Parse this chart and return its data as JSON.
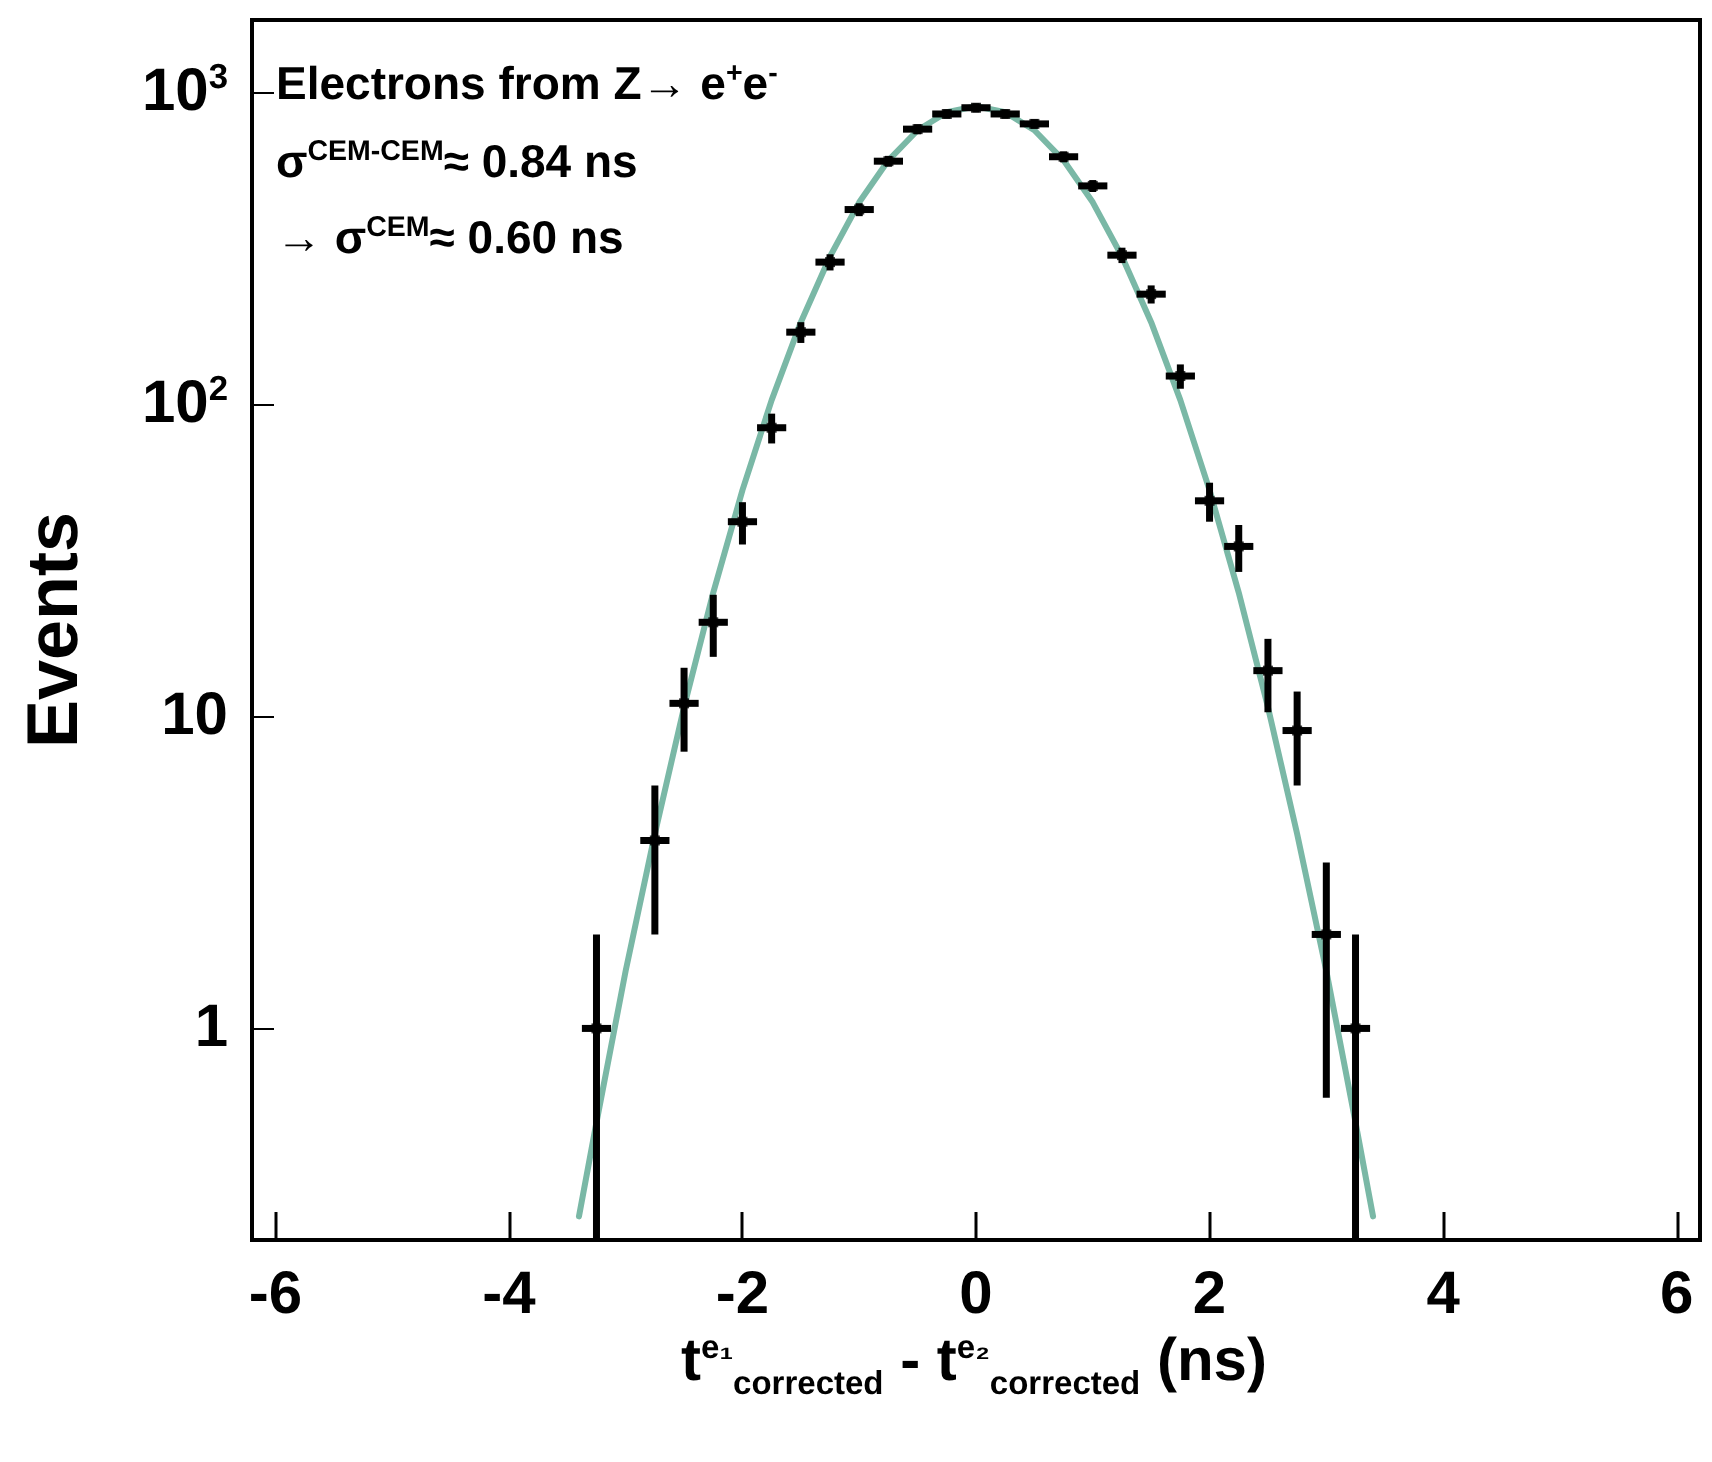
{
  "chart_data": {
    "type": "scatter",
    "xlabel": "t$^{e₁}$$_{corrected}$ - t$^{e₂}$$_{corrected}$ (ns)",
    "ylabel": "Events",
    "annotations": [
      "Electrons from Z→ e$^{+}$e$^{-}$",
      "σ$^{CEM-CEM}$≈ 0.84 ns",
      "→ σ$^{CEM}$≈ 0.60 ns"
    ],
    "xlim": [
      -6.2,
      6.2
    ],
    "xticks": [
      -6,
      -4,
      -2,
      0,
      2,
      4,
      6
    ],
    "ylim": [
      0.21,
      1700
    ],
    "yticks": [
      1,
      10,
      {
        "value": 100,
        "label": "10$^{2}$"
      },
      {
        "value": 1000,
        "label": "10$^{3}$"
      }
    ],
    "log": "y",
    "series": [
      {
        "color": "#000000",
        "x": [
          -3.25,
          -2.75,
          -2.5,
          -2.25,
          -2,
          -1.75,
          -1.5,
          -1.25,
          -1,
          -0.75,
          -0.5,
          -0.25,
          0,
          0.25,
          0.5,
          0.75,
          1,
          1.25,
          1.5,
          1.75,
          2,
          2.25,
          2.5,
          2.75,
          3,
          3.25
        ],
        "values": [
          1,
          4,
          11,
          20,
          42,
          84,
          170,
          285,
          420,
          600,
          760,
          850,
          890,
          850,
          790,
          620,
          500,
          300,
          225,
          123,
          49,
          35,
          14,
          9,
          2,
          1
        ],
        "errors": [
          [
            0.21,
            2
          ],
          2,
          3.3,
          4.5,
          6.5,
          9.2,
          13,
          17,
          20,
          24,
          28,
          29,
          30,
          29,
          28,
          25,
          22,
          17,
          15,
          11,
          7,
          6,
          3.7,
          3,
          1.4,
          [
            0.21,
            2
          ]
        ],
        "xerrors": [
          0.125,
          0.125,
          0.125,
          0.125,
          0.125,
          0.125,
          0.125,
          0.125,
          0.125,
          0.125,
          0.125,
          0.125,
          0.125,
          0.125,
          0.125,
          0.125,
          0.125,
          0.125,
          0.125,
          0.125,
          0.125,
          0.125,
          0.125,
          0.125,
          0.125,
          0.125
        ]
      },
      {
        "type": "line",
        "color": "#7ab8a6",
        "x": [
          -3.4,
          -3.25,
          -3,
          -2.75,
          -2.5,
          -2.25,
          -2,
          -1.75,
          -1.5,
          -1.25,
          -1,
          -0.75,
          -0.5,
          -0.25,
          0,
          0.25,
          0.5,
          0.75,
          1,
          1.25,
          1.5,
          1.75,
          2,
          2.25,
          2.5,
          2.75,
          3,
          3.25,
          3.4
        ],
        "values": [
          0.25,
          0.5,
          1.53,
          4.2,
          10.7,
          24.9,
          53,
          103,
          183,
          297,
          443,
          604,
          754,
          861,
          900,
          861,
          754,
          604,
          443,
          297,
          183,
          103,
          53,
          24.9,
          10.7,
          4.2,
          1.53,
          0.5,
          0.25
        ]
      }
    ]
  }
}
